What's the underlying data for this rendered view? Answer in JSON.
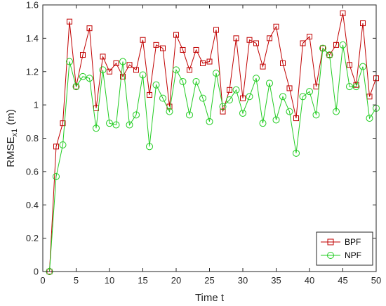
{
  "chart_data": {
    "type": "line",
    "xlabel": "Time t",
    "ylabel_main": "RMSE",
    "ylabel_sub": "x1",
    "ylabel_unit": "(m)",
    "xlim": [
      0,
      50
    ],
    "ylim": [
      0,
      1.6
    ],
    "x_ticks": [
      "0",
      "5",
      "10",
      "15",
      "20",
      "25",
      "30",
      "35",
      "40",
      "45",
      "50"
    ],
    "y_ticks": [
      "0",
      "0.2",
      "0.4",
      "0.6",
      "0.8",
      "1",
      "1.2",
      "1.4",
      "1.6"
    ],
    "grid": false,
    "legend_position": "bottom-right",
    "x": [
      1,
      2,
      3,
      4,
      5,
      6,
      7,
      8,
      9,
      10,
      11,
      12,
      13,
      14,
      15,
      16,
      17,
      18,
      19,
      20,
      21,
      22,
      23,
      24,
      25,
      26,
      27,
      28,
      29,
      30,
      31,
      32,
      33,
      34,
      35,
      36,
      37,
      38,
      39,
      40,
      41,
      42,
      43,
      44,
      45,
      46,
      47,
      48,
      49,
      50
    ],
    "series": [
      {
        "name": "BPF",
        "color": "#c00000",
        "marker": "square",
        "values": [
          0,
          0.75,
          0.89,
          1.5,
          1.11,
          1.3,
          1.46,
          0.98,
          1.29,
          1.2,
          1.25,
          1.17,
          1.24,
          1.21,
          1.39,
          1.06,
          1.36,
          1.34,
          0.99,
          1.42,
          1.33,
          1.21,
          1.33,
          1.25,
          1.26,
          1.45,
          0.96,
          1.09,
          1.4,
          1.04,
          1.39,
          1.37,
          1.23,
          1.4,
          1.47,
          1.25,
          1.1,
          0.92,
          1.37,
          1.41,
          1.11,
          1.34,
          1.3,
          1.36,
          1.55,
          1.24,
          1.12,
          1.49,
          1.05,
          1.16
        ]
      },
      {
        "name": "NPF",
        "color": "#22cc22",
        "marker": "circle",
        "values": [
          0,
          0.57,
          0.76,
          1.26,
          1.11,
          1.17,
          1.16,
          0.86,
          1.21,
          0.89,
          0.88,
          1.26,
          0.88,
          0.94,
          1.18,
          0.75,
          1.12,
          1.04,
          0.96,
          1.21,
          1.14,
          0.94,
          1.14,
          1.04,
          0.9,
          1.19,
          0.99,
          1.03,
          1.09,
          0.95,
          1.05,
          1.16,
          0.89,
          1.13,
          0.91,
          1.05,
          0.96,
          0.71,
          1.05,
          1.08,
          0.94,
          1.34,
          1.3,
          0.96,
          1.36,
          1.11,
          1.11,
          1.23,
          0.92,
          0.98
        ]
      }
    ]
  }
}
